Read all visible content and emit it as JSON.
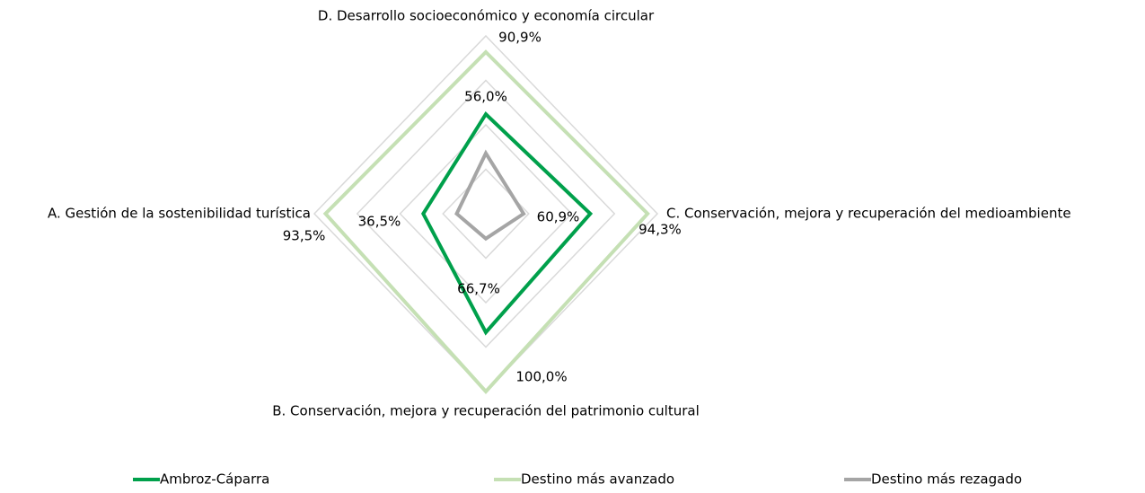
{
  "chart_data": {
    "type": "radar",
    "categories": [
      "D. Desarrollo socioeconómico y economía circular",
      "C. Conservación, mejora y recuperación del medioambiente",
      "B. Conservación, mejora y recuperación del patrimonio cultural",
      "A. Gestión de la sostenibilidad turística"
    ],
    "series": [
      {
        "name": "Ambroz-Cáparra",
        "color": "#00a04b",
        "values": [
          56.0,
          60.9,
          66.7,
          36.5
        ],
        "value_labels": [
          "56,0%",
          "60,9%",
          "66,7%",
          "36,5%"
        ]
      },
      {
        "name": "Destino más avanzado",
        "color": "#c5e0b4",
        "values": [
          90.9,
          94.3,
          100.0,
          93.5
        ],
        "value_labels": [
          "90,9%",
          "94,3%",
          "100,0%",
          "93,5%"
        ]
      },
      {
        "name": "Destino más rezagado",
        "color": "#a5a5a5",
        "values": [
          34,
          22,
          14,
          17
        ]
      }
    ],
    "rlim": [
      0,
      100
    ],
    "rticks": [
      0,
      25,
      50,
      75,
      100
    ],
    "grid": true,
    "legend": "bottom"
  }
}
